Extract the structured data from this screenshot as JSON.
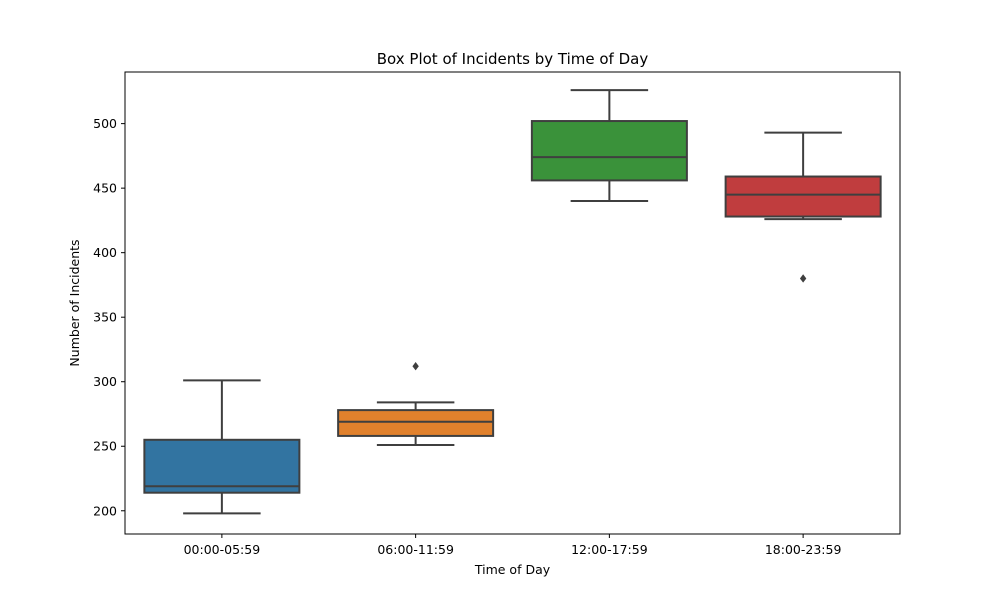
{
  "chart_data": {
    "type": "box",
    "title": "Box Plot of Incidents by Time of Day",
    "xlabel": "Time of Day",
    "ylabel": "Number of Incidents",
    "ylim": [
      182,
      540
    ],
    "yticks": [
      200,
      250,
      300,
      350,
      400,
      450,
      500
    ],
    "grid": false,
    "categories": [
      "00:00-05:59",
      "06:00-11:59",
      "12:00-17:59",
      "18:00-23:59"
    ],
    "colors": [
      "#3274a1",
      "#e1812c",
      "#3a923a",
      "#c03d3e"
    ],
    "edge_color": "#3f3f3f",
    "boxes": [
      {
        "category": "00:00-05:59",
        "whisker_low": 198,
        "q1": 214,
        "median": 219,
        "q3": 255,
        "whisker_high": 301,
        "outliers": []
      },
      {
        "category": "06:00-11:59",
        "whisker_low": 251,
        "q1": 258,
        "median": 269,
        "q3": 278,
        "whisker_high": 284,
        "outliers": [
          312
        ]
      },
      {
        "category": "12:00-17:59",
        "whisker_low": 440,
        "q1": 456,
        "median": 474,
        "q3": 502,
        "whisker_high": 526,
        "outliers": []
      },
      {
        "category": "18:00-23:59",
        "whisker_low": 426,
        "q1": 428,
        "median": 445,
        "q3": 459,
        "whisker_high": 493,
        "outliers": [
          380
        ]
      }
    ]
  }
}
